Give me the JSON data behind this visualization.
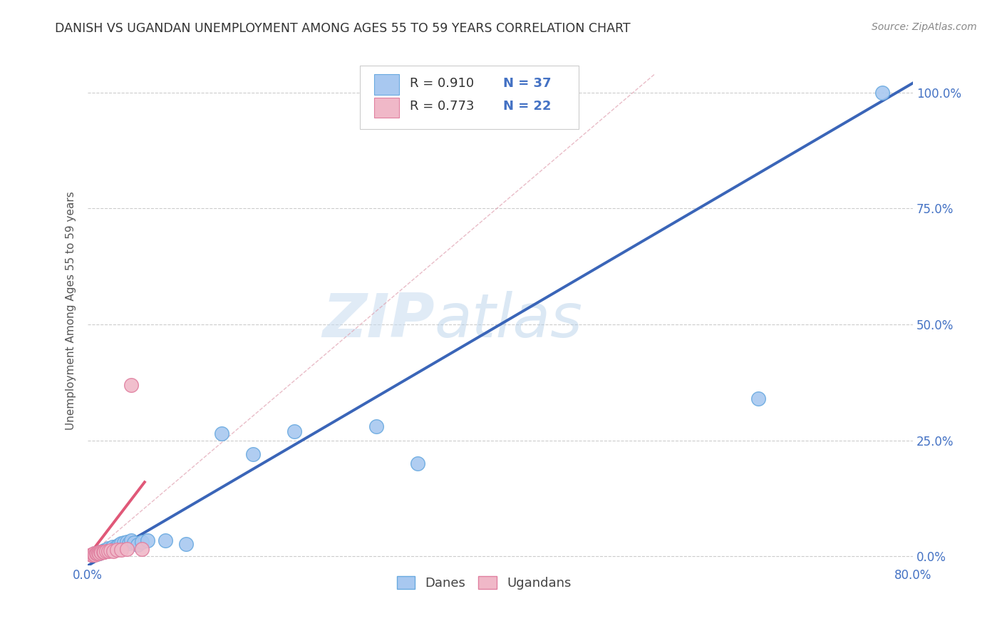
{
  "title": "DANISH VS UGANDAN UNEMPLOYMENT AMONG AGES 55 TO 59 YEARS CORRELATION CHART",
  "source": "Source: ZipAtlas.com",
  "ylabel": "Unemployment Among Ages 55 to 59 years",
  "xlim": [
    0,
    0.8
  ],
  "ylim": [
    -0.02,
    1.08
  ],
  "x_ticks": [
    0.0,
    0.1,
    0.2,
    0.3,
    0.4,
    0.5,
    0.6,
    0.7,
    0.8
  ],
  "x_tick_labels": [
    "0.0%",
    "",
    "",
    "",
    "",
    "",
    "",
    "",
    "80.0%"
  ],
  "y_tick_labels": [
    "0.0%",
    "25.0%",
    "50.0%",
    "75.0%",
    "100.0%"
  ],
  "y_ticks": [
    0.0,
    0.25,
    0.5,
    0.75,
    1.0
  ],
  "danes_color": "#a8c8f0",
  "danes_edge_color": "#6aaae0",
  "ugandans_color": "#f0b8c8",
  "ugandans_edge_color": "#e080a0",
  "danes_r": "0.910",
  "danes_n": "37",
  "ugandans_r": "0.773",
  "ugandans_n": "22",
  "danes_line_color": "#3a65b8",
  "ugandans_line_color": "#e05878",
  "danes_line_x": [
    0.0,
    0.8
  ],
  "danes_line_y": [
    -0.02,
    1.02
  ],
  "ugandans_line_x": [
    0.0,
    0.055
  ],
  "ugandans_line_y": [
    0.0,
    0.16
  ],
  "diag_line_x": [
    0.0,
    0.55
  ],
  "diag_line_y": [
    0.0,
    1.04
  ],
  "danes_scatter_x": [
    0.004,
    0.006,
    0.007,
    0.008,
    0.009,
    0.01,
    0.011,
    0.012,
    0.013,
    0.014,
    0.015,
    0.016,
    0.018,
    0.02,
    0.022,
    0.024,
    0.026,
    0.028,
    0.03,
    0.032,
    0.035,
    0.038,
    0.04,
    0.042,
    0.045,
    0.048,
    0.052,
    0.058,
    0.075,
    0.095,
    0.13,
    0.16,
    0.2,
    0.28,
    0.32,
    0.65,
    0.77
  ],
  "danes_scatter_y": [
    0.003,
    0.005,
    0.006,
    0.007,
    0.005,
    0.008,
    0.007,
    0.01,
    0.009,
    0.012,
    0.01,
    0.013,
    0.015,
    0.018,
    0.016,
    0.02,
    0.018,
    0.022,
    0.025,
    0.028,
    0.03,
    0.032,
    0.028,
    0.035,
    0.03,
    0.025,
    0.032,
    0.035,
    0.035,
    0.026,
    0.265,
    0.22,
    0.27,
    0.28,
    0.2,
    0.34,
    1.0
  ],
  "ugandans_scatter_x": [
    0.003,
    0.004,
    0.005,
    0.006,
    0.007,
    0.008,
    0.009,
    0.01,
    0.011,
    0.012,
    0.013,
    0.015,
    0.016,
    0.018,
    0.02,
    0.022,
    0.025,
    0.028,
    0.032,
    0.038,
    0.042,
    0.052
  ],
  "ugandans_scatter_y": [
    0.003,
    0.004,
    0.005,
    0.006,
    0.004,
    0.007,
    0.006,
    0.008,
    0.007,
    0.009,
    0.008,
    0.01,
    0.009,
    0.012,
    0.011,
    0.013,
    0.012,
    0.015,
    0.014,
    0.016,
    0.37,
    0.016
  ],
  "watermark_zip": "ZIP",
  "watermark_atlas": "atlas",
  "background_color": "#ffffff",
  "grid_color": "#cccccc",
  "title_color": "#333333",
  "axis_label_color": "#4472c4",
  "legend_r_color": "#4472c4",
  "right_axis_color": "#4472c4"
}
